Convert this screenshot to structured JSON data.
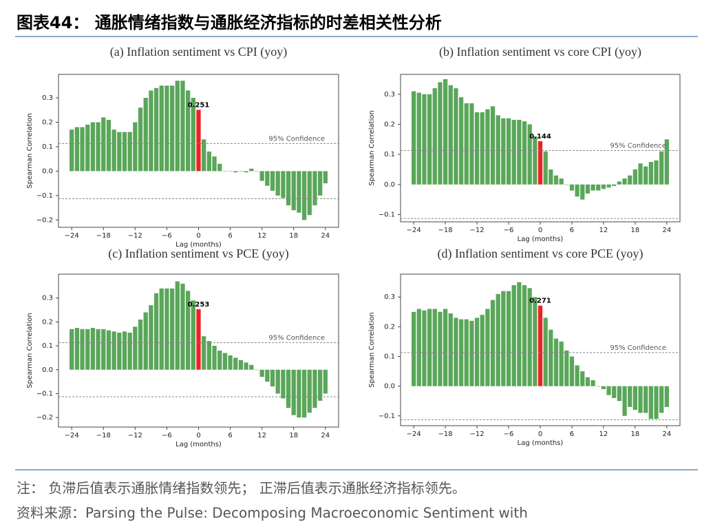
{
  "header": {
    "title": "图表44：  通胀情绪指数与通胀经济指标的时差相关性分析"
  },
  "notes": [
    "注：  负滞后值表示通胀情绪指数领先；  正滞后值表示通胀经济指标领先。",
    "资料来源：Parsing the Pulse: Decomposing Macroeconomic Sentiment with"
  ],
  "chart_data": [
    {
      "type": "bar",
      "title": "(a) Inflation sentiment vs CPI (yoy)",
      "xlabel": "Lag (months)",
      "ylabel": "Spearman Correlation",
      "x": [
        -24,
        -23,
        -22,
        -21,
        -20,
        -19,
        -18,
        -17,
        -16,
        -15,
        -14,
        -13,
        -12,
        -11,
        -10,
        -9,
        -8,
        -7,
        -6,
        -5,
        -4,
        -3,
        -2,
        -1,
        0,
        1,
        2,
        3,
        4,
        5,
        6,
        7,
        8,
        9,
        10,
        11,
        12,
        13,
        14,
        15,
        16,
        17,
        18,
        19,
        20,
        21,
        22,
        23,
        24
      ],
      "values": [
        0.17,
        0.18,
        0.18,
        0.19,
        0.2,
        0.2,
        0.22,
        0.21,
        0.17,
        0.16,
        0.16,
        0.16,
        0.2,
        0.26,
        0.3,
        0.33,
        0.34,
        0.35,
        0.35,
        0.35,
        0.37,
        0.37,
        0.33,
        0.3,
        0.251,
        0.13,
        0.08,
        0.06,
        0.03,
        0.0,
        0.0,
        -0.005,
        0.0,
        -0.005,
        0.01,
        0.0,
        -0.04,
        -0.06,
        -0.08,
        -0.1,
        -0.11,
        -0.14,
        -0.16,
        -0.17,
        -0.2,
        -0.18,
        -0.14,
        -0.1,
        -0.05
      ],
      "annotation": "0.251",
      "highlight_x": 0,
      "color": "#5aa65a",
      "highlight_color": "#ee2222",
      "hlines": [
        0.113,
        -0.113
      ],
      "hline_label": "95% Confidence",
      "xlim": [
        -26.5,
        26.5
      ],
      "ylim": [
        -0.23,
        0.396
      ],
      "xticks": [
        {
          "value": -24,
          "label": "−24"
        },
        {
          "value": -18,
          "label": "−18"
        },
        {
          "value": -12,
          "label": "−12"
        },
        {
          "value": -6,
          "label": "−6"
        },
        0,
        6,
        12,
        18,
        24
      ],
      "yticks": [
        {
          "value": -0.2,
          "label": "−0.2"
        },
        {
          "value": -0.1,
          "label": "−0.1"
        },
        {
          "value": 0,
          "label": "0.0"
        },
        0.1,
        0.2,
        0.3
      ]
    },
    {
      "type": "bar",
      "title": "(b) Inflation sentiment vs core CPI (yoy)",
      "xlabel": "Lag (months)",
      "ylabel": "Spearman Correlation",
      "x": [
        -24,
        -23,
        -22,
        -21,
        -20,
        -19,
        -18,
        -17,
        -16,
        -15,
        -14,
        -13,
        -12,
        -11,
        -10,
        -9,
        -8,
        -7,
        -6,
        -5,
        -4,
        -3,
        -2,
        -1,
        0,
        1,
        2,
        3,
        4,
        5,
        6,
        7,
        8,
        9,
        10,
        11,
        12,
        13,
        14,
        15,
        16,
        17,
        18,
        19,
        20,
        21,
        22,
        23,
        24
      ],
      "values": [
        0.31,
        0.305,
        0.3,
        0.3,
        0.32,
        0.34,
        0.35,
        0.33,
        0.32,
        0.29,
        0.27,
        0.27,
        0.24,
        0.24,
        0.25,
        0.26,
        0.23,
        0.22,
        0.22,
        0.215,
        0.215,
        0.21,
        0.2,
        0.16,
        0.144,
        0.11,
        0.05,
        0.03,
        0.02,
        0.0,
        -0.02,
        -0.04,
        -0.05,
        -0.03,
        -0.02,
        -0.02,
        -0.015,
        -0.01,
        -0.005,
        0.01,
        0.02,
        0.03,
        0.05,
        0.07,
        0.06,
        0.075,
        0.08,
        0.11,
        0.15
      ],
      "annotation": "0.144",
      "highlight_x": 0,
      "color": "#5aa65a",
      "highlight_color": "#ee2222",
      "hlines": [
        0.113,
        -0.113
      ],
      "hline_label": "95% Confidence",
      "xlim": [
        -26.5,
        26.5
      ],
      "ylim": [
        -0.124,
        0.366
      ],
      "xticks": [
        {
          "value": -24,
          "label": "−24"
        },
        {
          "value": -18,
          "label": "−18"
        },
        {
          "value": -12,
          "label": "−12"
        },
        {
          "value": -6,
          "label": "−6"
        },
        0,
        6,
        12,
        18,
        24
      ],
      "yticks": [
        {
          "value": -0.1,
          "label": "−0.1"
        },
        {
          "value": 0,
          "label": "0.0"
        },
        0.1,
        0.2,
        0.3
      ]
    },
    {
      "type": "bar",
      "title": "(c) Inflation sentiment vs PCE (yoy)",
      "xlabel": "Lag (months)",
      "ylabel": "Spearman Correlation",
      "x": [
        -24,
        -23,
        -22,
        -21,
        -20,
        -19,
        -18,
        -17,
        -16,
        -15,
        -14,
        -13,
        -12,
        -11,
        -10,
        -9,
        -8,
        -7,
        -6,
        -5,
        -4,
        -3,
        -2,
        -1,
        0,
        1,
        2,
        3,
        4,
        5,
        6,
        7,
        8,
        9,
        10,
        11,
        12,
        13,
        14,
        15,
        16,
        17,
        18,
        19,
        20,
        21,
        22,
        23,
        24
      ],
      "values": [
        0.17,
        0.175,
        0.17,
        0.17,
        0.175,
        0.17,
        0.17,
        0.165,
        0.16,
        0.155,
        0.16,
        0.155,
        0.18,
        0.21,
        0.24,
        0.27,
        0.32,
        0.34,
        0.34,
        0.34,
        0.37,
        0.36,
        0.33,
        0.29,
        0.253,
        0.14,
        0.12,
        0.1,
        0.08,
        0.07,
        0.06,
        0.05,
        0.04,
        0.03,
        0.02,
        0.0,
        -0.03,
        -0.05,
        -0.07,
        -0.1,
        -0.12,
        -0.16,
        -0.19,
        -0.2,
        -0.2,
        -0.18,
        -0.16,
        -0.13,
        -0.1
      ],
      "annotation": "0.253",
      "highlight_x": 0,
      "color": "#5aa65a",
      "highlight_color": "#ee2222",
      "hlines": [
        0.113,
        -0.113
      ],
      "hline_label": "95% Confidence",
      "xlim": [
        -26.5,
        26.5
      ],
      "ylim": [
        -0.24,
        0.4
      ],
      "xticks": [
        {
          "value": -24,
          "label": "−24"
        },
        {
          "value": -18,
          "label": "−18"
        },
        {
          "value": -12,
          "label": "−12"
        },
        {
          "value": -6,
          "label": "−6"
        },
        0,
        6,
        12,
        18,
        24
      ],
      "yticks": [
        {
          "value": -0.2,
          "label": "−0.2"
        },
        {
          "value": -0.1,
          "label": "−0.1"
        },
        {
          "value": 0,
          "label": "0.0"
        },
        0.1,
        0.2,
        0.3
      ]
    },
    {
      "type": "bar",
      "title": "(d) Inflation sentiment vs core PCE (yoy)",
      "xlabel": "Lag (months)",
      "ylabel": "Spearman Correlation",
      "x": [
        -24,
        -23,
        -22,
        -21,
        -20,
        -19,
        -18,
        -17,
        -16,
        -15,
        -14,
        -13,
        -12,
        -11,
        -10,
        -9,
        -8,
        -7,
        -6,
        -5,
        -4,
        -3,
        -2,
        -1,
        0,
        1,
        2,
        3,
        4,
        5,
        6,
        7,
        8,
        9,
        10,
        11,
        12,
        13,
        14,
        15,
        16,
        17,
        18,
        19,
        20,
        21,
        22,
        23,
        24
      ],
      "values": [
        0.25,
        0.26,
        0.255,
        0.26,
        0.26,
        0.25,
        0.26,
        0.245,
        0.23,
        0.225,
        0.225,
        0.22,
        0.23,
        0.24,
        0.26,
        0.29,
        0.31,
        0.32,
        0.32,
        0.34,
        0.35,
        0.34,
        0.33,
        0.3,
        0.271,
        0.23,
        0.19,
        0.16,
        0.15,
        0.12,
        0.1,
        0.07,
        0.05,
        0.03,
        0.02,
        0.0,
        -0.01,
        -0.03,
        -0.04,
        -0.05,
        -0.1,
        -0.07,
        -0.08,
        -0.09,
        -0.09,
        -0.11,
        -0.11,
        -0.09,
        -0.07
      ],
      "annotation": "0.271",
      "highlight_x": 0,
      "color": "#5aa65a",
      "highlight_color": "#ee2222",
      "hlines": [
        0.113,
        -0.113
      ],
      "hline_label": "95% Confidence",
      "xlim": [
        -26.5,
        26.5
      ],
      "ylim": [
        -0.133,
        0.377
      ],
      "xticks": [
        {
          "value": -24,
          "label": "−24"
        },
        {
          "value": -18,
          "label": "−18"
        },
        {
          "value": -12,
          "label": "−12"
        },
        {
          "value": -6,
          "label": "−6"
        },
        0,
        6,
        12,
        18,
        24
      ],
      "yticks": [
        {
          "value": -0.1,
          "label": "−0.1"
        },
        {
          "value": 0,
          "label": "0.0"
        },
        0.1,
        0.2,
        0.3
      ]
    }
  ]
}
